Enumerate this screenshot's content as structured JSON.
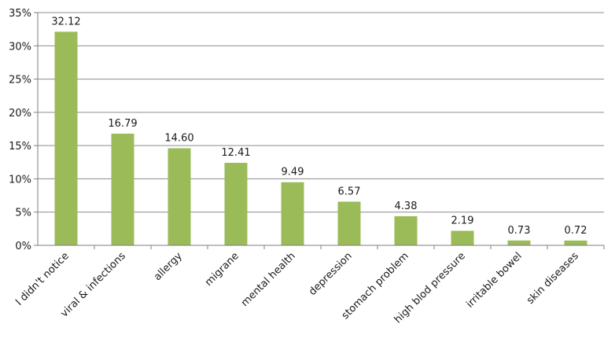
{
  "chart_data": {
    "type": "bar",
    "categories": [
      "I didn't notice",
      "viral & infections",
      "allergy",
      "migrane",
      "mental health",
      "depression",
      "stomach problem",
      "high blod pressure",
      "irritable bowel",
      "skin diseases"
    ],
    "values": [
      32.12,
      16.79,
      14.6,
      12.41,
      9.49,
      6.57,
      4.38,
      2.19,
      0.73,
      0.72
    ],
    "data_labels": [
      "32.12",
      "16.79",
      "14.60",
      "12.41",
      "9.49",
      "6.57",
      "4.38",
      "2.19",
      "0.73",
      "0.72"
    ],
    "y_ticks": [
      0,
      5,
      10,
      15,
      20,
      25,
      30,
      35
    ],
    "y_tick_labels": [
      "0%",
      "5%",
      "10%",
      "15%",
      "20%",
      "25%",
      "30%",
      "35%"
    ],
    "ylim": [
      0,
      35
    ],
    "grid": true,
    "legend": "none",
    "colors": {
      "bar": "#9bbb59",
      "grid": "#8c8c8c",
      "axis": "#7f7f7f"
    }
  }
}
